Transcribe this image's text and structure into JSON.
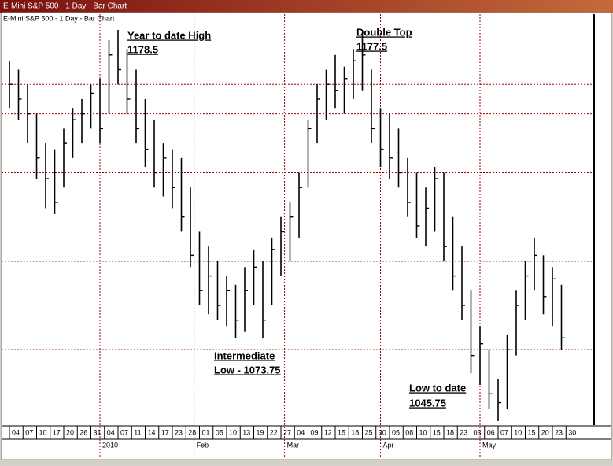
{
  "window_title": "E-Mini S&P 500 - 1 Day - Bar Chart",
  "chart_data": {
    "type": "ohlc",
    "title": "E-Mini S&P 500 - 1 Day - Bar Chart",
    "ylim": [
      1044.4,
      1183.3
    ],
    "color": "#000000",
    "reference_lines": [
      1160,
      1150,
      1130,
      1100,
      1070
    ],
    "reference_color": "#a00000",
    "series": [
      {
        "name": "E-Mini S&P 500",
        "high": [
          1168,
          1165,
          1160,
          1150,
          1140,
          1138,
          1145,
          1152,
          1155,
          1160,
          1162,
          1175,
          1178.5,
          1172,
          1165,
          1155,
          1148,
          1140,
          1138,
          1135,
          1125,
          1110,
          1105,
          1100,
          1095,
          1092,
          1098,
          1104,
          1100,
          1108,
          1115,
          1120,
          1130,
          1148,
          1160,
          1165,
          1170,
          1166,
          1172,
          1177.5,
          1165,
          1152,
          1150,
          1145,
          1135,
          1130,
          1125,
          1132,
          1130,
          1115,
          1105,
          1090,
          1078,
          1070,
          1060,
          1075,
          1090,
          1100,
          1108,
          1102,
          1098,
          1092
        ],
        "low": [
          1152,
          1148,
          1140,
          1128,
          1118,
          1116,
          1125,
          1135,
          1140,
          1145,
          1140,
          1150,
          1160,
          1150,
          1140,
          1132,
          1125,
          1122,
          1118,
          1110,
          1098,
          1085,
          1082,
          1080,
          1078,
          1074,
          1076,
          1085,
          1073.75,
          1085,
          1095,
          1100,
          1108,
          1125,
          1140,
          1148,
          1152,
          1150,
          1155,
          1158,
          1140,
          1132,
          1128,
          1125,
          1115,
          1108,
          1105,
          1110,
          1100,
          1090,
          1080,
          1062,
          1058,
          1050,
          1045.75,
          1050,
          1068,
          1080,
          1090,
          1082,
          1078,
          1070
        ],
        "close": [
          1160,
          1155,
          1150,
          1135,
          1128,
          1120,
          1140,
          1148,
          1150,
          1157,
          1145,
          1170,
          1165,
          1155,
          1145,
          1138,
          1130,
          1135,
          1125,
          1115,
          1102,
          1090,
          1095,
          1085,
          1090,
          1080,
          1090,
          1098,
          1080,
          1104,
          1110,
          1115,
          1125,
          1145,
          1155,
          1160,
          1158,
          1162,
          1168,
          1170,
          1145,
          1138,
          1135,
          1130,
          1120,
          1112,
          1118,
          1128,
          1105,
          1095,
          1085,
          1068,
          1072,
          1055,
          1052,
          1070,
          1085,
          1095,
          1102,
          1088,
          1094,
          1074
        ]
      }
    ],
    "xticks": [
      {
        "value": 0,
        "label": "04"
      },
      {
        "value": 1.5,
        "label": "07"
      },
      {
        "value": 3,
        "label": "10"
      },
      {
        "value": 4.5,
        "label": "17"
      },
      {
        "value": 6,
        "label": "20"
      },
      {
        "value": 7.5,
        "label": "26"
      },
      {
        "value": 9,
        "label": "31"
      },
      {
        "value": 10.5,
        "label": "04"
      },
      {
        "value": 12,
        "label": "07"
      },
      {
        "value": 13.5,
        "label": "11"
      },
      {
        "value": 15,
        "label": "14"
      },
      {
        "value": 16.5,
        "label": "17"
      },
      {
        "value": 18,
        "label": "23"
      },
      {
        "value": 19.5,
        "label": "28"
      },
      {
        "value": 21,
        "label": "01"
      },
      {
        "value": 22.5,
        "label": "05"
      },
      {
        "value": 24,
        "label": "10"
      },
      {
        "value": 25.5,
        "label": "13"
      },
      {
        "value": 27,
        "label": "19"
      },
      {
        "value": 28.5,
        "label": "22"
      },
      {
        "value": 30,
        "label": "27"
      },
      {
        "value": 31.5,
        "label": "04"
      },
      {
        "value": 33,
        "label": "09"
      },
      {
        "value": 34.5,
        "label": "12"
      },
      {
        "value": 36,
        "label": "15"
      },
      {
        "value": 37.5,
        "label": "18"
      },
      {
        "value": 39,
        "label": "25"
      },
      {
        "value": 40.5,
        "label": "30"
      },
      {
        "value": 42,
        "label": "05"
      },
      {
        "value": 43.5,
        "label": "08"
      },
      {
        "value": 45,
        "label": "10"
      },
      {
        "value": 46.5,
        "label": "15"
      },
      {
        "value": 48,
        "label": "18"
      },
      {
        "value": 49.5,
        "label": "23"
      },
      {
        "value": 51,
        "label": "03"
      },
      {
        "value": 52.5,
        "label": "06"
      },
      {
        "value": 54,
        "label": "07"
      },
      {
        "value": 55.5,
        "label": "10"
      },
      {
        "value": 57,
        "label": "15"
      },
      {
        "value": 58.5,
        "label": "20"
      },
      {
        "value": 60,
        "label": "23"
      },
      {
        "value": 61.5,
        "label": "30"
      }
    ],
    "months": [
      {
        "value": 10,
        "label": "2010"
      },
      {
        "value": 20.4,
        "label": "Feb"
      },
      {
        "value": 30.4,
        "label": "Mar"
      },
      {
        "value": 41,
        "label": "Apr"
      },
      {
        "value": 52,
        "label": "May"
      }
    ],
    "annotations": [
      {
        "title": "Year to date High",
        "value": 1178.5,
        "value_label": "1178.5"
      },
      {
        "title": "Double Top",
        "value": 1177.5,
        "value_label": "1177.5"
      },
      {
        "title": "Intermediate",
        "value": 1073.75,
        "value_label": "Low - 1073.75"
      },
      {
        "title": "Low to date",
        "value": 1045.75,
        "value_label": "1045.75"
      }
    ]
  }
}
